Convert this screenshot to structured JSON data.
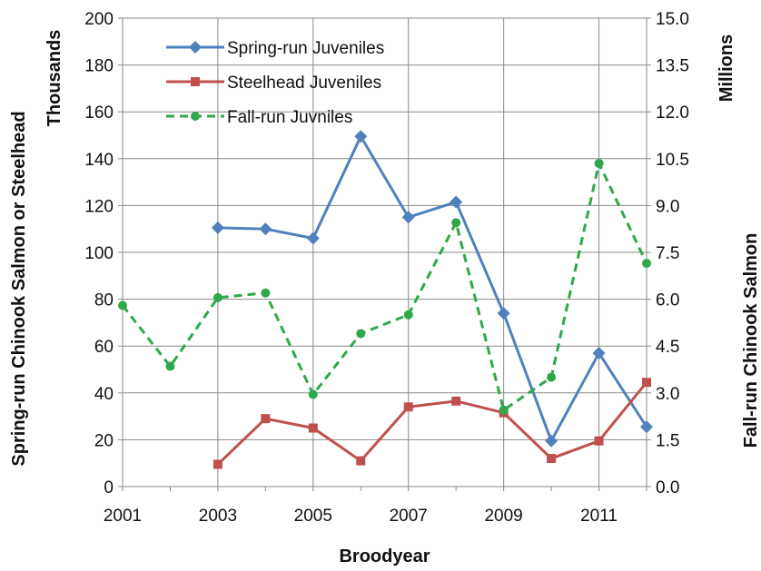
{
  "chart_data": {
    "type": "line",
    "x": [
      2001,
      2002,
      2003,
      2004,
      2005,
      2006,
      2007,
      2008,
      2009,
      2010,
      2011,
      2012
    ],
    "xlabel": "Broodyear",
    "xlim": [
      2001,
      2012
    ],
    "x_tick_labels": [
      "2001",
      "2003",
      "2005",
      "2007",
      "2009",
      "2011"
    ],
    "ylabel_left": "Spring-run Chinook Salmon or Steelhead",
    "ylabel_left_units": "Thousands",
    "ylim_left": [
      0,
      200
    ],
    "y_left_tick_labels": [
      "0",
      "20",
      "40",
      "60",
      "80",
      "100",
      "120",
      "140",
      "160",
      "180",
      "200"
    ],
    "ylabel_right": "Fall-run Chinook Salmon",
    "ylabel_right_units": "Millions",
    "ylim_right": [
      0,
      15
    ],
    "y_right_tick_labels": [
      "0.0",
      "1.5",
      "3.0",
      "4.5",
      "6.0",
      "7.5",
      "9.0",
      "10.5",
      "12.0",
      "13.5",
      "15.0"
    ],
    "grid": true,
    "legend_position": "top-left",
    "series": [
      {
        "name": "Spring-run Juveniles",
        "axis": "left",
        "color": "#4F81BD",
        "marker": "diamond",
        "line_style": "solid",
        "values": [
          null,
          null,
          110.5,
          110,
          106,
          149.5,
          115,
          121.5,
          74,
          19.5,
          57,
          25.5
        ]
      },
      {
        "name": "Steelhead Juveniles",
        "axis": "left",
        "color": "#C0504D",
        "marker": "square",
        "line_style": "solid",
        "values": [
          null,
          null,
          9.5,
          29,
          25,
          11,
          34,
          36.5,
          31.5,
          12,
          19.5,
          44.5
        ]
      },
      {
        "name": "Fall-run Juvniles",
        "axis": "right",
        "color": "#2EA84A",
        "marker": "circle",
        "line_style": "dashed",
        "values": [
          5.8,
          3.85,
          6.05,
          6.2,
          2.95,
          4.9,
          5.5,
          8.45,
          2.45,
          3.5,
          10.35,
          7.15
        ]
      }
    ]
  }
}
